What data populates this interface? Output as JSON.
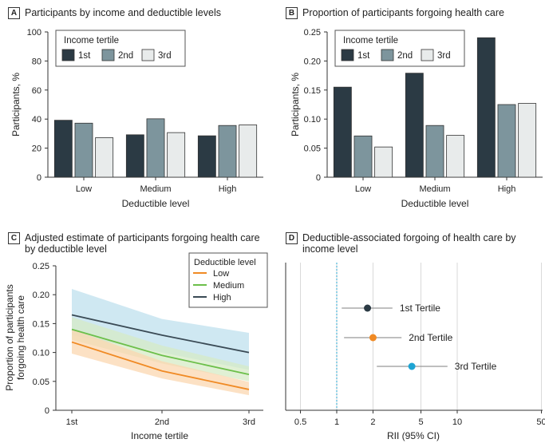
{
  "colors": {
    "first": "#2b3a44",
    "second": "#7d959d",
    "third": "#e8ebeb",
    "low": "#f08a24",
    "medium": "#6cbf4a",
    "high": "#3a4a55",
    "band_blue": "#bfe0ee",
    "band_green": "#d5ebc6",
    "band_orange": "#fbd7b0",
    "ref_line": "#4bb6d8",
    "dot_first": "#2b3a44",
    "dot_second": "#f08a24",
    "dot_third": "#1ea4d3"
  },
  "panels": {
    "a": {
      "badge": "A",
      "title": "Participants by income and deductible levels"
    },
    "b": {
      "badge": "B",
      "title": "Proportion of participants forgoing health care"
    },
    "c": {
      "badge": "C",
      "title": "Adjusted estimate of participants forgoing health care by deductible level"
    },
    "d": {
      "badge": "D",
      "title": "Deductible-associated forgoing of health care by income level"
    }
  },
  "chart_data": [
    {
      "id": "A",
      "type": "bar",
      "title": "Participants by income and deductible levels",
      "categories": [
        "Low",
        "Medium",
        "High"
      ],
      "xlabel": "Deductible level",
      "ylabel": "Participants, %",
      "ylim": [
        0,
        100
      ],
      "yticks": [
        "0",
        "20",
        "40",
        "60",
        "80",
        "100"
      ],
      "legend_title": "Income tertile",
      "legend_position": "top-left",
      "series": [
        {
          "name": "1st",
          "values": [
            39.2,
            29.2,
            28.5
          ]
        },
        {
          "name": "2nd",
          "values": [
            37.2,
            40.2,
            35.6
          ]
        },
        {
          "name": "3rd",
          "values": [
            27.2,
            30.7,
            36.0
          ]
        }
      ]
    },
    {
      "id": "B",
      "type": "bar",
      "title": "Proportion of participants forgoing health care",
      "categories": [
        "Low",
        "Medium",
        "High"
      ],
      "xlabel": "Deductible level",
      "ylabel": "Participants, %",
      "ylim": [
        0,
        0.25
      ],
      "yticks": [
        "0",
        "0.05",
        "0.10",
        "0.15",
        "0.20",
        "0.25"
      ],
      "legend_title": "Income tertile",
      "legend_position": "top-left",
      "series": [
        {
          "name": "1st",
          "values": [
            0.155,
            0.179,
            0.24
          ]
        },
        {
          "name": "2nd",
          "values": [
            0.071,
            0.089,
            0.125
          ]
        },
        {
          "name": "3rd",
          "values": [
            0.052,
            0.072,
            0.127
          ]
        }
      ]
    },
    {
      "id": "C",
      "type": "line",
      "title": "Adjusted estimate of participants forgoing health care by deductible level",
      "categories": [
        "1st",
        "2nd",
        "3rd"
      ],
      "xlabel": "Income tertile",
      "ylabel": "Proportion of participants forgoing health care",
      "ylim": [
        0,
        0.25
      ],
      "yticks": [
        "0",
        "0.05",
        "0.10",
        "0.15",
        "0.20",
        "0.25"
      ],
      "legend_title": "Deductible level",
      "legend_position": "top-right",
      "series": [
        {
          "name": "Low",
          "values": [
            0.118,
            0.068,
            0.036
          ],
          "lower": [
            0.098,
            0.055,
            0.026
          ],
          "upper": [
            0.14,
            0.085,
            0.049
          ]
        },
        {
          "name": "Medium",
          "values": [
            0.14,
            0.095,
            0.062
          ],
          "lower": [
            0.122,
            0.081,
            0.05
          ],
          "upper": [
            0.161,
            0.112,
            0.076
          ]
        },
        {
          "name": "High",
          "values": [
            0.165,
            0.13,
            0.1
          ],
          "lower": [
            0.13,
            0.1,
            0.07
          ],
          "upper": [
            0.21,
            0.158,
            0.134
          ]
        }
      ]
    },
    {
      "id": "D",
      "type": "scatter",
      "title": "Deductible-associated forgoing of health care by income level",
      "xlabel": "RII (95% CI)",
      "xscale": "log",
      "xlim": [
        0.3,
        50
      ],
      "xticks": [
        0.5,
        1,
        2,
        5,
        10,
        50
      ],
      "xtick_labels": [
        "0.5",
        "1",
        "2",
        "5",
        "10",
        "50"
      ],
      "reference_line": 1,
      "grid": true,
      "points": [
        {
          "label": "1st Tertile",
          "estimate": 1.8,
          "lower": 1.1,
          "upper": 2.9
        },
        {
          "label": "2nd Tertile",
          "estimate": 2.0,
          "lower": 1.15,
          "upper": 3.45
        },
        {
          "label": "3rd Tertile",
          "estimate": 4.2,
          "lower": 2.15,
          "upper": 8.3
        }
      ]
    }
  ]
}
